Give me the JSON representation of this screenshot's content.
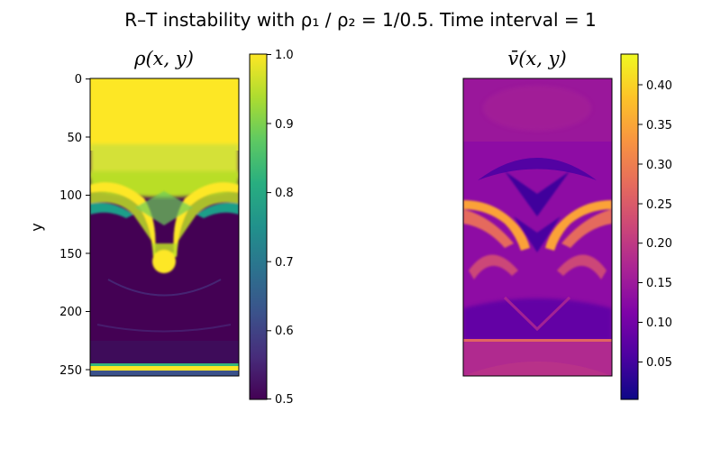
{
  "figure": {
    "suptitle": "R–T instability with ρ₁ / ρ₂ = 1/0.5. Time interval = 1"
  },
  "chart_data": [
    {
      "type": "heatmap",
      "title": "ρ(x, y)",
      "ylabel": "y",
      "xlabel": "",
      "x_ticks_visible": false,
      "y_ticks": [
        0,
        50,
        100,
        150,
        200,
        250
      ],
      "y_tick_labels": [
        "0",
        "50",
        "100",
        "150",
        "200",
        "250"
      ],
      "ylim": [
        255.5,
        -0.5
      ],
      "grid_rows": 256,
      "colormap": "viridis",
      "colorbar": {
        "range": [
          0.5,
          1.0
        ],
        "ticks": [
          0.5,
          0.6,
          0.7,
          0.8,
          0.9,
          1.0
        ],
        "tick_labels": [
          "0.5",
          "0.6",
          "0.7",
          "0.8",
          "0.9",
          "1.0"
        ]
      },
      "grid": false
    },
    {
      "type": "heatmap",
      "title": "v̄(x, y)",
      "ylabel": "",
      "xlabel": "",
      "x_ticks_visible": false,
      "y_ticks_visible": false,
      "colormap": "plasma",
      "colorbar": {
        "range": [
          0.0,
          0.44
        ],
        "ticks": [
          0.05,
          0.1,
          0.15,
          0.2,
          0.25,
          0.3,
          0.35,
          0.4
        ],
        "tick_labels": [
          "0.05",
          "0.10",
          "0.15",
          "0.20",
          "0.25",
          "0.30",
          "0.35",
          "0.40"
        ]
      },
      "grid": false
    }
  ]
}
